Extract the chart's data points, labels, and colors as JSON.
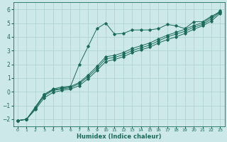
{
  "xlabel": "Humidex (Indice chaleur)",
  "bg_color": "#cce8e8",
  "grid_color": "#aacfcf",
  "line_color": "#1a6b5a",
  "xlim": [
    -0.5,
    23.5
  ],
  "ylim": [
    -2.5,
    6.5
  ],
  "xticks": [
    0,
    1,
    2,
    3,
    4,
    5,
    6,
    7,
    8,
    9,
    10,
    11,
    12,
    13,
    14,
    15,
    16,
    17,
    18,
    19,
    20,
    21,
    22,
    23
  ],
  "yticks": [
    -2,
    -1,
    0,
    1,
    2,
    3,
    4,
    5,
    6
  ],
  "series1_x": [
    0,
    1,
    2,
    3,
    4,
    5,
    6,
    7,
    8,
    9,
    10,
    11,
    12,
    13,
    14,
    15,
    16,
    17,
    18,
    19,
    20,
    21,
    22,
    23
  ],
  "series1_y": [
    -2.1,
    -2.0,
    -1.2,
    -0.2,
    0.2,
    0.35,
    0.4,
    2.0,
    3.3,
    4.6,
    5.0,
    4.2,
    4.25,
    4.5,
    4.5,
    4.5,
    4.6,
    4.9,
    4.8,
    4.6,
    5.1,
    5.1,
    5.5,
    5.8
  ],
  "series2_x": [
    0,
    1,
    2,
    3,
    4,
    5,
    6,
    7,
    8,
    9,
    10,
    11,
    12,
    13,
    14,
    15,
    16,
    17,
    18,
    19,
    20,
    21,
    22,
    23
  ],
  "series2_y": [
    -2.1,
    -2.0,
    -1.2,
    -0.3,
    0.1,
    0.2,
    0.3,
    0.6,
    1.1,
    1.7,
    2.4,
    2.5,
    2.7,
    3.0,
    3.2,
    3.4,
    3.7,
    4.0,
    4.2,
    4.4,
    4.7,
    4.9,
    5.3,
    5.8
  ],
  "series3_x": [
    0,
    1,
    2,
    3,
    4,
    5,
    6,
    7,
    8,
    9,
    10,
    11,
    12,
    13,
    14,
    15,
    16,
    17,
    18,
    19,
    20,
    21,
    22,
    23
  ],
  "series3_y": [
    -2.1,
    -2.0,
    -1.3,
    -0.45,
    -0.05,
    0.1,
    0.2,
    0.45,
    0.95,
    1.55,
    2.2,
    2.35,
    2.55,
    2.85,
    3.05,
    3.25,
    3.55,
    3.8,
    4.0,
    4.25,
    4.55,
    4.8,
    5.15,
    5.7
  ],
  "series4_x": [
    0,
    1,
    2,
    3,
    4,
    5,
    6,
    7,
    8,
    9,
    10,
    11,
    12,
    13,
    14,
    15,
    16,
    17,
    18,
    19,
    20,
    21,
    22,
    23
  ],
  "series4_y": [
    -2.1,
    -2.0,
    -1.1,
    -0.2,
    0.15,
    0.25,
    0.38,
    0.68,
    1.22,
    1.85,
    2.55,
    2.65,
    2.85,
    3.15,
    3.35,
    3.55,
    3.85,
    4.12,
    4.33,
    4.55,
    4.82,
    5.02,
    5.42,
    5.88
  ]
}
